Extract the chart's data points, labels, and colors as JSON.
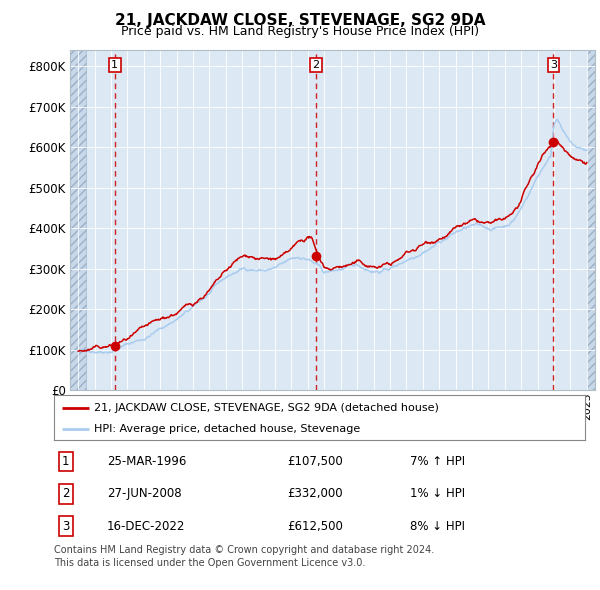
{
  "title": "21, JACKDAW CLOSE, STEVENAGE, SG2 9DA",
  "subtitle": "Price paid vs. HM Land Registry's House Price Index (HPI)",
  "hpi_color": "#aaccee",
  "price_color": "#cc0000",
  "bg_color": "#dce9f5",
  "sale_points": [
    {
      "date_num": 1996.23,
      "price": 107500,
      "label": "1"
    },
    {
      "date_num": 2008.49,
      "price": 332000,
      "label": "2"
    },
    {
      "date_num": 2022.96,
      "price": 612500,
      "label": "3"
    }
  ],
  "vline_dates": [
    1996.23,
    2008.49,
    2022.96
  ],
  "yticks": [
    0,
    100000,
    200000,
    300000,
    400000,
    500000,
    600000,
    700000,
    800000
  ],
  "ytick_labels": [
    "£0",
    "£100K",
    "£200K",
    "£300K",
    "£400K",
    "£500K",
    "£600K",
    "£700K",
    "£800K"
  ],
  "xmin": 1993.5,
  "xmax": 2025.5,
  "ymin": 0,
  "ymax": 840000,
  "legend_line1": "21, JACKDAW CLOSE, STEVENAGE, SG2 9DA (detached house)",
  "legend_line2": "HPI: Average price, detached house, Stevenage",
  "table_rows": [
    {
      "num": "1",
      "date": "25-MAR-1996",
      "price": "£107,500",
      "hpi": "7% ↑ HPI"
    },
    {
      "num": "2",
      "date": "27-JUN-2008",
      "price": "£332,000",
      "hpi": "1% ↓ HPI"
    },
    {
      "num": "3",
      "date": "16-DEC-2022",
      "price": "£612,500",
      "hpi": "8% ↓ HPI"
    }
  ],
  "footer": "Contains HM Land Registry data © Crown copyright and database right 2024.\nThis data is licensed under the Open Government Licence v3.0."
}
